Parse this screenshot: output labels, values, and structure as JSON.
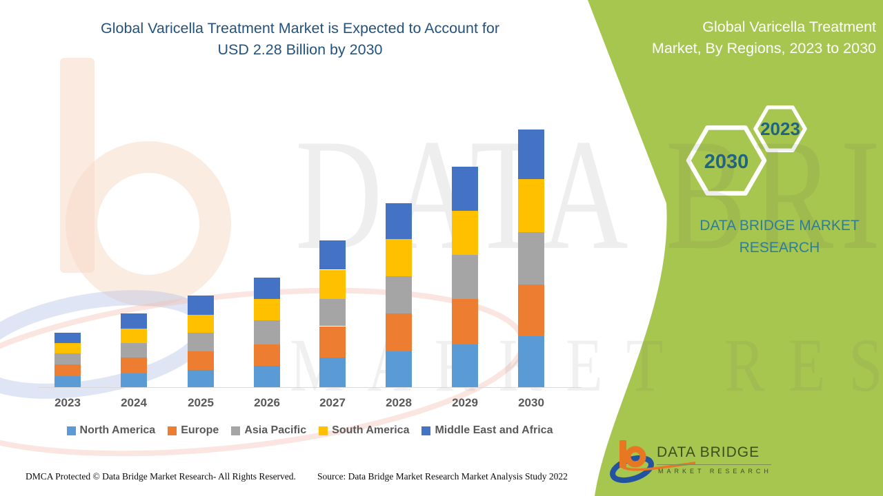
{
  "main_title": {
    "line1": "Global Varicella Treatment Market is Expected to Account for",
    "line2": "USD 2.28 Billion by 2030"
  },
  "side_panel": {
    "title_line1": "Global Varicella Treatment",
    "title_line2": "Market, By Regions, 2023 to 2030",
    "hexagon_back_label": "2030",
    "hexagon_front_label": "2023",
    "brand_line1": "DATA BRIDGE MARKET",
    "brand_line2": "RESEARCH"
  },
  "colors": {
    "panel_green": "#A7C64F",
    "title_blue": "#24527E",
    "hex_label_teal": "#21647E",
    "brand_teal": "#2F7D96",
    "axis_gray": "#D9D9D9",
    "label_gray": "#595959"
  },
  "chart_data": {
    "type": "bar",
    "stacked": true,
    "title": "Global Varicella Treatment Market, By Regions, 2023 to 2030",
    "unit": "USD Billion",
    "categories": [
      "2023",
      "2024",
      "2025",
      "2026",
      "2027",
      "2028",
      "2029",
      "2030"
    ],
    "series": [
      {
        "name": "North America",
        "color": "#5B9BD5",
        "values": [
          0.1,
          0.12,
          0.15,
          0.19,
          0.26,
          0.32,
          0.38,
          0.45
        ]
      },
      {
        "name": "Europe",
        "color": "#ED7D31",
        "values": [
          0.1,
          0.14,
          0.17,
          0.19,
          0.28,
          0.33,
          0.4,
          0.46
        ]
      },
      {
        "name": "Asia Pacific",
        "color": "#A5A5A5",
        "values": [
          0.1,
          0.13,
          0.16,
          0.21,
          0.24,
          0.33,
          0.39,
          0.46
        ]
      },
      {
        "name": "South America",
        "color": "#FFC000",
        "values": [
          0.09,
          0.13,
          0.16,
          0.19,
          0.26,
          0.33,
          0.39,
          0.47
        ]
      },
      {
        "name": "Middle East and Africa",
        "color": "#4472C4",
        "values": [
          0.09,
          0.13,
          0.17,
          0.19,
          0.26,
          0.32,
          0.39,
          0.44
        ]
      }
    ],
    "totals_estimated": [
      0.48,
      0.65,
      0.81,
      0.97,
      1.3,
      1.63,
      1.95,
      2.28
    ],
    "ylim": [
      0,
      2.4
    ],
    "gridlines": false,
    "legend_position": "bottom"
  },
  "footer": {
    "left": "DMCA Protected © Data Bridge Market Research- All Rights Reserved.",
    "right": "Source: Data Bridge Market Research Market Analysis Study 2022"
  },
  "logo": {
    "name_line": "DATA BRIDGE",
    "tagline": "MARKET RESEARCH"
  },
  "watermark": {
    "line1": "DATA BRIDGE",
    "line2": "MARKET RESEARCH"
  }
}
